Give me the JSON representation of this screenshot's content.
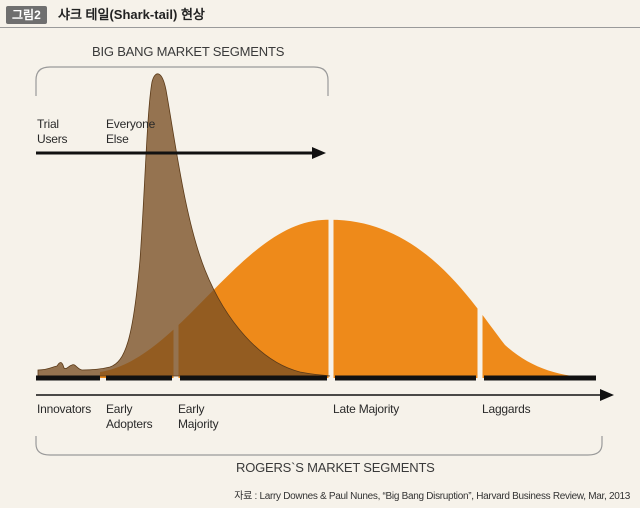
{
  "figure": {
    "badge": "그림2",
    "title": "샤크 테일(Shark-tail) 현상"
  },
  "top_segments": {
    "title": "BIG BANG MARKET SEGMENTS",
    "trial_users": [
      "Trial",
      "Users"
    ],
    "everyone_else": [
      "Everyone",
      "Else"
    ]
  },
  "bottom_segments": {
    "title": "ROGERS`S MARKET SEGMENTS",
    "innovators": "Innovators",
    "early_adopters": [
      "Early",
      "Adopters"
    ],
    "early_majority": [
      "Early",
      "Majority"
    ],
    "late_majority": "Late Majority",
    "laggards": "Laggards"
  },
  "source": "자료 : Larry Downes & Paul Nunes, “Big Bang Disruption”, Harvard Business Review, Mar, 2013",
  "colors": {
    "background": "#f6f2ea",
    "bell_curve": "#ee8a1a",
    "shark_fin": "#7a4f24",
    "axis": "#111111",
    "bracket": "#9a9a9a"
  }
}
